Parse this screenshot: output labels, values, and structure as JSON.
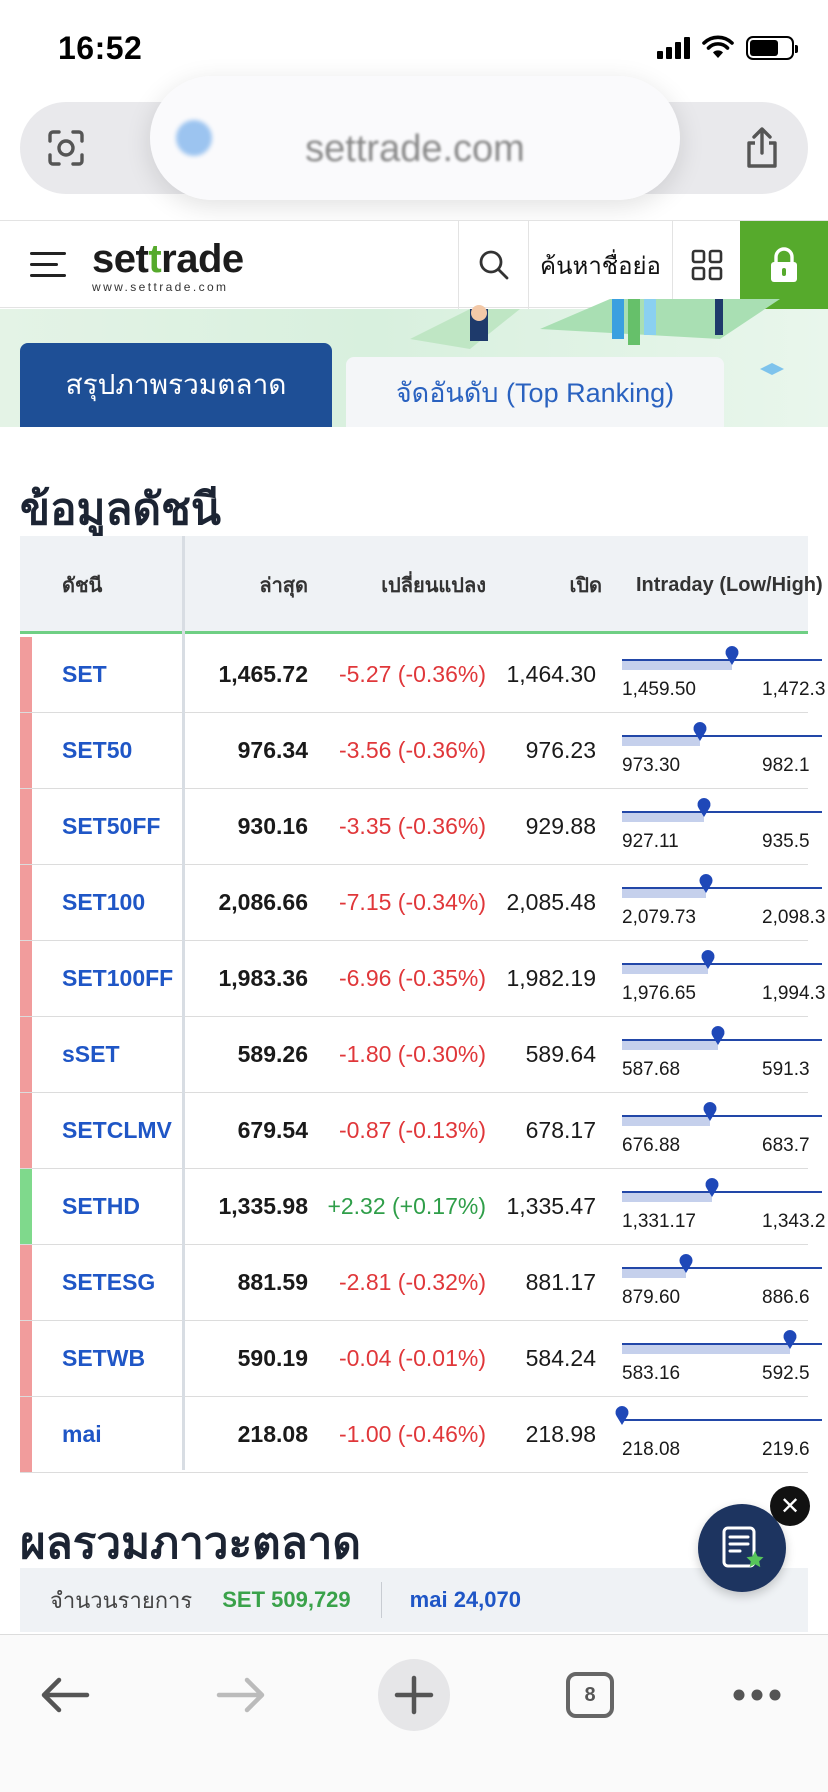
{
  "status_bar": {
    "time": "16:52"
  },
  "browser": {
    "url": "settrade.com",
    "tab_count": "8"
  },
  "header": {
    "logo_main_a": "set",
    "logo_main_b": "t",
    "logo_main_c": "rade",
    "logo_sub": "www.settrade.com",
    "symbol_search_label": "ค้นหาชื่อย่อ"
  },
  "tabs": {
    "active": "สรุปภาพรวมตลาด",
    "inactive": "จัดอันดับ (Top Ranking)"
  },
  "index_section": {
    "title": "ข้อมูลดัชนี",
    "columns": {
      "index": "ดัชนี",
      "last": "ล่าสุด",
      "change": "เปลี่ยนแปลง",
      "open": "เปิด",
      "intraday": "Intraday (Low/High)"
    },
    "rows": [
      {
        "name": "SET",
        "last": "1,465.72",
        "change": "-5.27 (-0.36%)",
        "direction": "down",
        "open": "1,464.30",
        "low": "1,459.50",
        "high": "1,472.3",
        "position": 0.55
      },
      {
        "name": "SET50",
        "last": "976.34",
        "change": "-3.56 (-0.36%)",
        "direction": "down",
        "open": "976.23",
        "low": "973.30",
        "high": "982.1",
        "position": 0.39
      },
      {
        "name": "SET50FF",
        "last": "930.16",
        "change": "-3.35 (-0.36%)",
        "direction": "down",
        "open": "929.88",
        "low": "927.11",
        "high": "935.5",
        "position": 0.41
      },
      {
        "name": "SET100",
        "last": "2,086.66",
        "change": "-7.15 (-0.34%)",
        "direction": "down",
        "open": "2,085.48",
        "low": "2,079.73",
        "high": "2,098.3",
        "position": 0.42
      },
      {
        "name": "SET100FF",
        "last": "1,983.36",
        "change": "-6.96 (-0.35%)",
        "direction": "down",
        "open": "1,982.19",
        "low": "1,976.65",
        "high": "1,994.3",
        "position": 0.43
      },
      {
        "name": "sSET",
        "last": "589.26",
        "change": "-1.80 (-0.30%)",
        "direction": "down",
        "open": "589.64",
        "low": "587.68",
        "high": "591.3",
        "position": 0.48
      },
      {
        "name": "SETCLMV",
        "last": "679.54",
        "change": "-0.87 (-0.13%)",
        "direction": "down",
        "open": "678.17",
        "low": "676.88",
        "high": "683.7",
        "position": 0.44
      },
      {
        "name": "SETHD",
        "last": "1,335.98",
        "change": "+2.32 (+0.17%)",
        "direction": "up",
        "open": "1,335.47",
        "low": "1,331.17",
        "high": "1,343.2",
        "position": 0.45
      },
      {
        "name": "SETESG",
        "last": "881.59",
        "change": "-2.81 (-0.32%)",
        "direction": "down",
        "open": "881.17",
        "low": "879.60",
        "high": "886.6",
        "position": 0.32
      },
      {
        "name": "SETWB",
        "last": "590.19",
        "change": "-0.04 (-0.01%)",
        "direction": "down",
        "open": "584.24",
        "low": "583.16",
        "high": "592.5",
        "position": 0.84
      },
      {
        "name": "mai",
        "last": "218.08",
        "change": "-1.00 (-0.46%)",
        "direction": "down",
        "open": "218.98",
        "low": "218.08",
        "high": "219.6",
        "position": 0.0
      }
    ]
  },
  "market_section": {
    "title": "ผลรวมภาวะตลาด",
    "label": "จำนวนรายการ",
    "set_value": "SET 509,729",
    "mai_value": "mai 24,070"
  },
  "colors": {
    "brand_green": "#56aa2c",
    "primary_blue": "#1e4f96",
    "down_red": "#e0373a",
    "up_green": "#2f9e49",
    "down_bar": "#f19c9c",
    "up_bar": "#7fd98c"
  },
  "icons": [
    "camera-lens-icon",
    "share-icon",
    "hamburger-icon",
    "search-icon",
    "grid-icon",
    "lock-icon",
    "checklist-star-icon",
    "close-icon",
    "back-arrow-icon",
    "forward-arrow-icon",
    "plus-icon",
    "more-icon"
  ]
}
